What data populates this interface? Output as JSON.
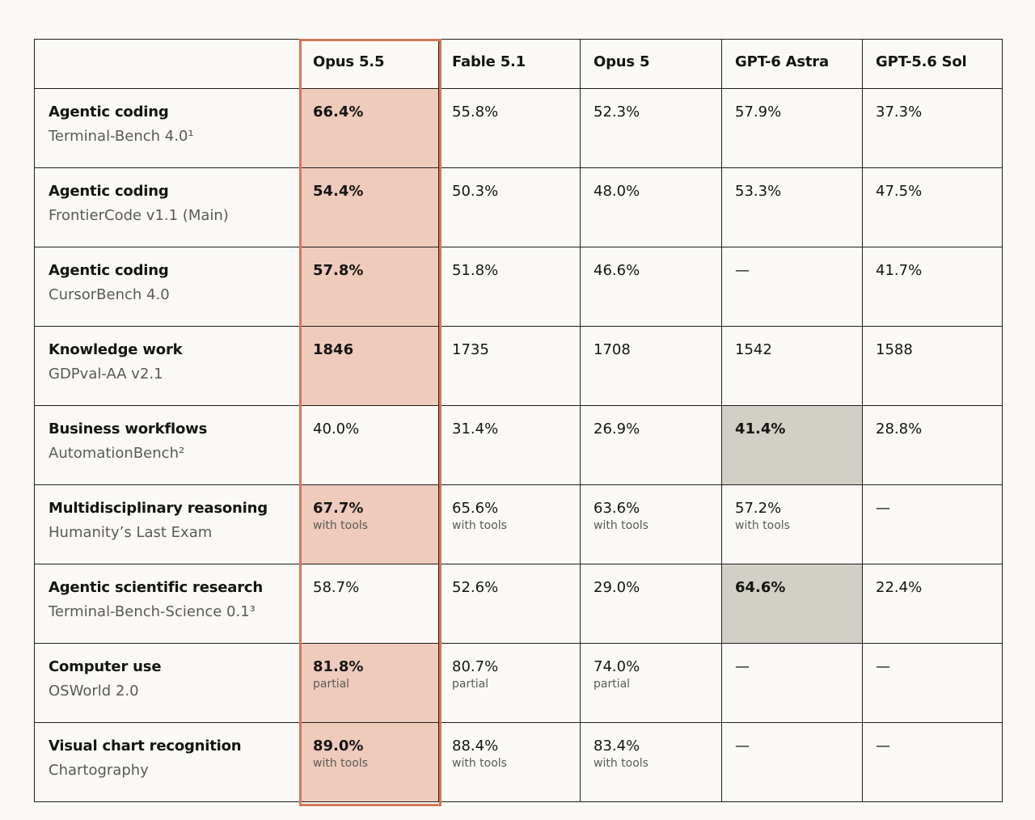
{
  "columns": [
    "",
    "Opus 5.5",
    "Fable 5.1",
    "Opus 5",
    "GPT-6 Astra",
    "GPT-5.6 Sol"
  ],
  "rows": [
    {
      "category": "Agentic coding",
      "benchmark": "Terminal-Bench 4.0¹",
      "cells": [
        {
          "v": "66.4%",
          "n": "",
          "best": true,
          "hl": "accent"
        },
        {
          "v": "55.8%",
          "n": ""
        },
        {
          "v": "52.3%",
          "n": ""
        },
        {
          "v": "57.9%",
          "n": ""
        },
        {
          "v": "37.3%",
          "n": ""
        }
      ]
    },
    {
      "category": "Agentic coding",
      "benchmark": "FrontierCode v1.1 (Main)",
      "cells": [
        {
          "v": "54.4%",
          "n": "",
          "best": true,
          "hl": "accent"
        },
        {
          "v": "50.3%",
          "n": ""
        },
        {
          "v": "48.0%",
          "n": ""
        },
        {
          "v": "53.3%",
          "n": ""
        },
        {
          "v": "47.5%",
          "n": ""
        }
      ]
    },
    {
      "category": "Agentic coding",
      "benchmark": "CursorBench 4.0",
      "cells": [
        {
          "v": "57.8%",
          "n": "",
          "best": true,
          "hl": "accent"
        },
        {
          "v": "51.8%",
          "n": ""
        },
        {
          "v": "46.6%",
          "n": ""
        },
        {
          "v": "—",
          "n": ""
        },
        {
          "v": "41.7%",
          "n": ""
        }
      ]
    },
    {
      "category": "Knowledge work",
      "benchmark": "GDPval-AA v2.1",
      "cells": [
        {
          "v": "1846",
          "n": "",
          "best": true,
          "hl": "accent"
        },
        {
          "v": "1735",
          "n": ""
        },
        {
          "v": "1708",
          "n": ""
        },
        {
          "v": "1542",
          "n": ""
        },
        {
          "v": "1588",
          "n": ""
        }
      ]
    },
    {
      "category": "Business workflows",
      "benchmark": "AutomationBench²",
      "cells": [
        {
          "v": "40.0%",
          "n": ""
        },
        {
          "v": "31.4%",
          "n": ""
        },
        {
          "v": "26.9%",
          "n": ""
        },
        {
          "v": "41.4%",
          "n": "",
          "best": true,
          "hl": "gray"
        },
        {
          "v": "28.8%",
          "n": ""
        }
      ]
    },
    {
      "category": "Multidisciplinary reasoning",
      "benchmark": "Humanity’s Last Exam",
      "cells": [
        {
          "v": "67.7%",
          "n": "with tools",
          "best": true,
          "hl": "accent"
        },
        {
          "v": "65.6%",
          "n": "with tools"
        },
        {
          "v": "63.6%",
          "n": "with tools"
        },
        {
          "v": "57.2%",
          "n": "with tools"
        },
        {
          "v": "—",
          "n": ""
        }
      ]
    },
    {
      "category": "Agentic scientific research",
      "benchmark": "Terminal-Bench-Science 0.1³",
      "cells": [
        {
          "v": "58.7%",
          "n": ""
        },
        {
          "v": "52.6%",
          "n": ""
        },
        {
          "v": "29.0%",
          "n": ""
        },
        {
          "v": "64.6%",
          "n": "",
          "best": true,
          "hl": "gray"
        },
        {
          "v": "22.4%",
          "n": ""
        }
      ]
    },
    {
      "category": "Computer use",
      "benchmark": "OSWorld 2.0",
      "cells": [
        {
          "v": "81.8%",
          "n": "partial",
          "best": true,
          "hl": "accent"
        },
        {
          "v": "80.7%",
          "n": "partial"
        },
        {
          "v": "74.0%",
          "n": "partial"
        },
        {
          "v": "—",
          "n": ""
        },
        {
          "v": "—",
          "n": ""
        }
      ]
    },
    {
      "category": "Visual chart recognition",
      "benchmark": "Chartography",
      "cells": [
        {
          "v": "89.0%",
          "n": "with tools",
          "best": true,
          "hl": "accent"
        },
        {
          "v": "88.4%",
          "n": "with tools"
        },
        {
          "v": "83.4%",
          "n": "with tools"
        },
        {
          "v": "—",
          "n": ""
        },
        {
          "v": "—",
          "n": ""
        }
      ]
    }
  ],
  "colors": {
    "accent_fill": "#efcbbc",
    "accent_border": "#d97757",
    "gray_fill": "#d2d0c6",
    "background": "#faf9f5"
  }
}
